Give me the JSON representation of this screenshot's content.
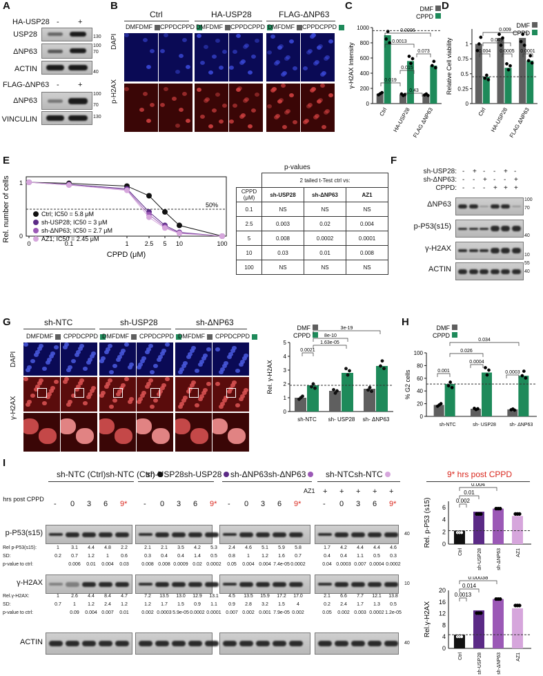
{
  "colors": {
    "dmf": "#5f5f5f",
    "cppd": "#1e8a5a",
    "ctrl": "#111111",
    "shusp28": "#5b2a86",
    "shdnp63": "#9b59b6",
    "az1": "#d6a6dc",
    "red": "#d9261c"
  },
  "panelA": {
    "letter": "A",
    "ha_label": "HA-USP28",
    "ha_signs": [
      "-",
      "+"
    ],
    "rows1": [
      "USP28",
      "ΔNP63",
      "ACTIN"
    ],
    "mw1": [
      "130",
      "100",
      "70",
      "40"
    ],
    "flag_label": "FLAG-ΔNP63",
    "flag_signs": [
      "-",
      "+"
    ],
    "rows2": [
      "ΔNP63",
      "VINCULIN"
    ],
    "mw2": [
      "100",
      "70",
      "130"
    ]
  },
  "panelB": {
    "letter": "B",
    "groups": [
      "Ctrl",
      "HA-USP28",
      "FLAG-ΔNP63"
    ],
    "sub": [
      "DMF",
      "CPPD"
    ],
    "rows": [
      "DAPI",
      "p-H2AX"
    ]
  },
  "panelC": {
    "letter": "C",
    "legend": [
      "DMF",
      "CPPD"
    ],
    "ylabel": "γ-H2AX Intensity",
    "yticks": [
      "0",
      "200",
      "400",
      "600",
      "800",
      "1000"
    ],
    "xcats": [
      "Ctrl",
      "HA-USP28",
      "FLAG ΔNP63"
    ],
    "pvals": [
      "0.0006",
      "0.0013",
      "0.073",
      "0.015",
      "0.019",
      "0.43"
    ]
  },
  "panelD": {
    "letter": "D",
    "legend": [
      "DMF",
      "CPPD"
    ],
    "ylabel": "Relative Cell viability",
    "yticks": [
      "0",
      "0.25",
      "0.5",
      "0.75",
      "1"
    ],
    "xcats": [
      "Ctrl",
      "HA-USP28",
      "FLAG ΔNP63"
    ],
    "pvals": [
      "0.009",
      "0.049",
      "0.004",
      "0.0005",
      "0.0001"
    ]
  },
  "panelE": {
    "letter": "E",
    "ylabel": "Rel. number of cells",
    "xlabel": "CPPD (μM)",
    "yticks": [
      "0",
      "1"
    ],
    "xticks": [
      "0",
      "0.1",
      "1",
      "2.5",
      "5",
      "10",
      "100"
    ],
    "fifty": "50%",
    "legend": [
      "Ctrl; IC50 = 5.8 μM",
      "sh-USP28; IC50 = 3 μM",
      "sh-ΔNP63; IC50 = 2.7 μM",
      "AZ1; IC50 = 2.45 μM"
    ],
    "table_title": "p-values",
    "table_sub": "2 tailed t-Test ctrl vs:",
    "table_head": [
      "CPPD (μM)",
      "sh-USP28",
      "sh-ΔNP63",
      "AZ1"
    ],
    "table_rows": [
      [
        "0.1",
        "NS",
        "NS",
        "NS"
      ],
      [
        "2.5",
        "0.003",
        "0.02",
        "0.004"
      ],
      [
        "5",
        "0.008",
        "0.0002",
        "0.0001"
      ],
      [
        "10",
        "0.03",
        "0.01",
        "0.008"
      ],
      [
        "100",
        "NS",
        "NS",
        "NS"
      ]
    ]
  },
  "panelF": {
    "letter": "F",
    "cond_labels": [
      "sh-USP28:",
      "sh-ΔNP63:",
      "CPPD:"
    ],
    "signs": [
      [
        "-",
        "+",
        "-",
        "-",
        "+",
        "-"
      ],
      [
        "-",
        "-",
        "+",
        "-",
        "-",
        "+"
      ],
      [
        "-",
        "-",
        "-",
        "+",
        "+",
        "+"
      ]
    ],
    "rows": [
      "ΔNP63",
      "p-P53(s15)",
      "γ-H2AX",
      "ACTIN"
    ],
    "mw": [
      "100",
      "70",
      "40",
      "10",
      "55",
      "40"
    ]
  },
  "panelG": {
    "letter": "G",
    "groups": [
      "sh-NTC",
      "sh-USP28",
      "sh-ΔNP63"
    ],
    "sub": [
      "DMF",
      "CPPD"
    ],
    "rows": [
      "DAPI",
      "γ-H2AX"
    ],
    "legend": [
      "DMF",
      "CPPD"
    ],
    "ylabel": "Rel. γ-H2AX",
    "yticks": [
      "0",
      "1",
      "2",
      "3",
      "4",
      "5"
    ],
    "xcats": [
      "sh-NTC",
      "sh- USP28",
      "sh- ΔNP63"
    ],
    "pvals": [
      "3e-19",
      "8e-10",
      "1.63e-05",
      "0.0021"
    ]
  },
  "panelH": {
    "letter": "H",
    "legend": [
      "DMF",
      "CPPD"
    ],
    "ylabel": "% G2 cells",
    "yticks": [
      "0",
      "20",
      "40",
      "60",
      "80",
      "100"
    ],
    "xcats": [
      "sh-NTC",
      "sh- USP28",
      "sh- ΔNP63"
    ],
    "pvals": [
      "0.034",
      "0.026",
      "0.0004",
      "0.001",
      "0.0003"
    ]
  },
  "panelI": {
    "letter": "I",
    "groups": [
      "sh-NTC (Ctrl)",
      "sh-USP28",
      "sh-ΔNP63",
      "sh-NTC"
    ],
    "title_right": "9* hrs post CPPD",
    "az1_label": "AZ1",
    "hrs_label": "hrs post CPPD",
    "az1_signs": [
      "+",
      "+",
      "+",
      "+",
      "+"
    ],
    "hrs": [
      [
        "-",
        "0",
        "3",
        "6",
        "9*"
      ],
      [
        "-",
        "0",
        "3",
        "6",
        "9*"
      ],
      [
        "-",
        "0",
        "3",
        "6",
        "9*"
      ],
      [
        "-",
        "0",
        "3",
        "6",
        "9*"
      ]
    ],
    "p53_label": "p-P53(s15)",
    "h2ax_label": "γ-H2AX",
    "actin_label": "ACTIN",
    "q1_labels": [
      "Rel p-P53(s15):",
      "SD:",
      "p-value to ctrl:"
    ],
    "q2_labels": [
      "Rel.γ-H2AX:",
      "SD:",
      "p-value to ctrl:"
    ],
    "q1": [
      [
        [
          "1",
          "3.1",
          "4.4",
          "4.8",
          "2.2"
        ],
        [
          "0.2",
          "0.7",
          "1.2",
          "1",
          "0.6"
        ],
        [
          "",
          "0.006",
          "0.01",
          "0.004",
          "0.03"
        ]
      ],
      [
        [
          "2.1",
          "2.1",
          "3.5",
          "4.2",
          "5.3"
        ],
        [
          "0.3",
          "0.4",
          "0.4",
          "1.4",
          "0.5"
        ],
        [
          "0.008",
          "0.008",
          "0.0009",
          "0.02",
          "0.0002"
        ]
      ],
      [
        [
          "2.4",
          "4.6",
          "5.1",
          "5.9",
          "5.8"
        ],
        [
          "0.8",
          "1",
          "1.2",
          "1.6",
          "0.7"
        ],
        [
          "0.05",
          "0.004",
          "0.004",
          "7.4e-05",
          "0.0002"
        ]
      ],
      [
        [
          "1.7",
          "4.2",
          "4.4",
          "4.4",
          "4.6"
        ],
        [
          "0.4",
          "0.4",
          "1.1",
          "0.5",
          "0.3"
        ],
        [
          "0.04",
          "0.0003",
          "0.007",
          "0.0004",
          "0.0002"
        ]
      ]
    ],
    "q2": [
      [
        [
          "1",
          "2.6",
          "4.4",
          "8.4",
          "4.7"
        ],
        [
          "0.7",
          "1",
          "1.2",
          "2.4",
          "1.2"
        ],
        [
          "",
          "0.09",
          "0.004",
          "0.007",
          "0.01"
        ]
      ],
      [
        [
          "7.2",
          "13.5",
          "13.0",
          "12.9",
          "13.1"
        ],
        [
          "1.2",
          "1.7",
          "1.5",
          "0.9",
          "1.1"
        ],
        [
          "0.002",
          "0.0003",
          "5.9e-05",
          "0.0002",
          "0.0001"
        ]
      ],
      [
        [
          "4.5",
          "13.5",
          "15.9",
          "17.2",
          "17.0"
        ],
        [
          "0.9",
          "2.8",
          "3.2",
          "1.5",
          "4"
        ],
        [
          "0.007",
          "0.002",
          "0.001",
          "7.9e-05",
          "0.002"
        ]
      ],
      [
        [
          "2.1",
          "6.6",
          "7.7",
          "12.1",
          "13.8"
        ],
        [
          "0.2",
          "2.4",
          "1.7",
          "1.3",
          "0.5"
        ],
        [
          "0.05",
          "0.002",
          "0.003",
          "0.0002",
          "1.2e-05"
        ]
      ]
    ],
    "mw": [
      "40",
      "10",
      "40"
    ],
    "chart1": {
      "ylabel": "Rel. p-P53 (s15)",
      "yticks": [
        "0",
        "2",
        "4",
        "6"
      ],
      "pvals": [
        "0.004",
        "0.01",
        "0.002"
      ]
    },
    "chart2": {
      "ylabel": "Rel.γ-H2AX",
      "yticks": [
        "0",
        "4",
        "8",
        "12",
        "16",
        "20"
      ],
      "pvals": [
        "0.00038",
        "0.014",
        "0.0013"
      ]
    },
    "xcats": [
      "Ctrl",
      "sh-USP28",
      "sh-ΔNP63",
      "AZ1"
    ]
  },
  "chart_data": [
    {
      "type": "bar",
      "title": "",
      "ylabel": "γ-H2AX Intensity",
      "categories": [
        "Ctrl",
        "HA-USP28",
        "FLAG ΔNP63"
      ],
      "ylim": [
        0,
        1000
      ],
      "series": [
        {
          "name": "DMF",
          "values": [
            130,
            120,
            120
          ]
        },
        {
          "name": "CPPD",
          "values": [
            900,
            560,
            500
          ]
        }
      ]
    },
    {
      "type": "bar",
      "title": "",
      "ylabel": "Relative Cell viability",
      "categories": [
        "Ctrl",
        "HA-USP28",
        "FLAG ΔNP63"
      ],
      "ylim": [
        0,
        1.25
      ],
      "series": [
        {
          "name": "DMF",
          "values": [
            1.0,
            1.1,
            1.1
          ]
        },
        {
          "name": "CPPD",
          "values": [
            0.45,
            0.6,
            0.72
          ]
        }
      ]
    },
    {
      "type": "line",
      "title": "",
      "xlabel": "CPPD (μM)",
      "ylabel": "Rel. number of cells",
      "x": [
        0,
        0.1,
        1,
        2.5,
        5,
        10,
        100
      ],
      "series": [
        {
          "name": "Ctrl; IC50 = 5.8 μM",
          "values": [
            1.0,
            0.98,
            0.93,
            0.75,
            0.45,
            0.2,
            0.0
          ]
        },
        {
          "name": "sh-USP28; IC50 = 3 μM",
          "values": [
            1.0,
            0.96,
            0.88,
            0.45,
            0.2,
            0.07,
            0.0
          ]
        },
        {
          "name": "sh-ΔNP63; IC50 = 2.7 μM",
          "values": [
            1.0,
            0.95,
            0.86,
            0.4,
            0.17,
            0.06,
            0.0
          ]
        },
        {
          "name": "AZ1; IC50 = 2.45 μM",
          "values": [
            1.0,
            0.95,
            0.85,
            0.35,
            0.15,
            0.05,
            0.0
          ]
        }
      ]
    },
    {
      "type": "bar",
      "title": "",
      "ylabel": "Rel. γ-H2AX",
      "categories": [
        "sh-NTC",
        "sh- USP28",
        "sh- ΔNP63"
      ],
      "ylim": [
        0,
        5
      ],
      "series": [
        {
          "name": "DMF",
          "values": [
            1.0,
            1.5,
            1.65
          ]
        },
        {
          "name": "CPPD",
          "values": [
            1.9,
            2.8,
            3.3
          ]
        }
      ]
    },
    {
      "type": "bar",
      "title": "",
      "ylabel": "% G2 cells",
      "categories": [
        "sh-NTC",
        "sh- USP28",
        "sh- ΔNP63"
      ],
      "ylim": [
        0,
        100
      ],
      "series": [
        {
          "name": "DMF",
          "values": [
            18,
            12,
            11
          ]
        },
        {
          "name": "CPPD",
          "values": [
            51,
            69,
            64
          ]
        }
      ]
    },
    {
      "type": "bar",
      "title": "",
      "ylabel": "Rel. p-P53 (s15)",
      "categories": [
        "Ctrl",
        "sh-USP28",
        "sh-ΔNP63",
        "AZ1"
      ],
      "ylim": [
        0,
        7
      ],
      "values": [
        2.2,
        5.3,
        5.8,
        4.6
      ]
    },
    {
      "type": "bar",
      "title": "",
      "ylabel": "Rel.γ-H2AX",
      "categories": [
        "Ctrl",
        "sh-USP28",
        "sh-ΔNP63",
        "AZ1"
      ],
      "ylim": [
        0,
        20
      ],
      "values": [
        4.7,
        13.1,
        17.0,
        13.8
      ]
    }
  ]
}
